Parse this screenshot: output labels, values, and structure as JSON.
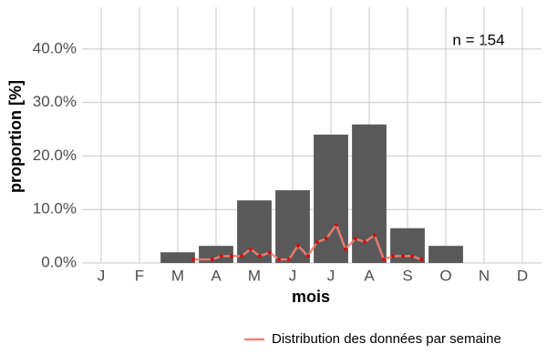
{
  "chart_data": {
    "type": "bar",
    "annotation": "n = 154",
    "x_label": "mois",
    "y_label": "proportion [%]",
    "categories": [
      "J",
      "F",
      "M",
      "A",
      "M",
      "J",
      "J",
      "A",
      "S",
      "O",
      "N",
      "D"
    ],
    "values": [
      0,
      0,
      2.0,
      3.2,
      11.7,
      13.6,
      24.0,
      25.9,
      6.5,
      3.2,
      0,
      0
    ],
    "color": "#595959",
    "ylim": [
      0,
      47.8
    ],
    "yticks": [
      {
        "value": 0,
        "label": "0.0%"
      },
      {
        "value": 10,
        "label": "10.0%"
      },
      {
        "value": 20,
        "label": "20.0%"
      },
      {
        "value": 30,
        "label": "30.0%"
      },
      {
        "value": 40,
        "label": "40.0%"
      }
    ],
    "grid": true,
    "xlim": [
      0.5,
      12.5
    ],
    "line": {
      "name": "Distribution des données par semaine",
      "color": "#f08070",
      "point_color": "#cc1111",
      "x": [
        3.4,
        3.9,
        4.14,
        4.4,
        4.67,
        4.9,
        5.14,
        5.4,
        5.64,
        5.9,
        6.14,
        6.4,
        6.64,
        6.88,
        7.14,
        7.38,
        7.64,
        7.88,
        8.14,
        8.38,
        8.62,
        8.88,
        9.12,
        9.36
      ],
      "values": [
        0.65,
        0.65,
        1.3,
        1.3,
        1.3,
        2.6,
        1.3,
        1.95,
        0.65,
        0.65,
        3.25,
        1.3,
        3.9,
        4.55,
        7.14,
        2.6,
        4.55,
        3.9,
        5.19,
        0.65,
        1.3,
        1.3,
        1.3,
        0.65
      ]
    },
    "legend": "bottom-right"
  }
}
